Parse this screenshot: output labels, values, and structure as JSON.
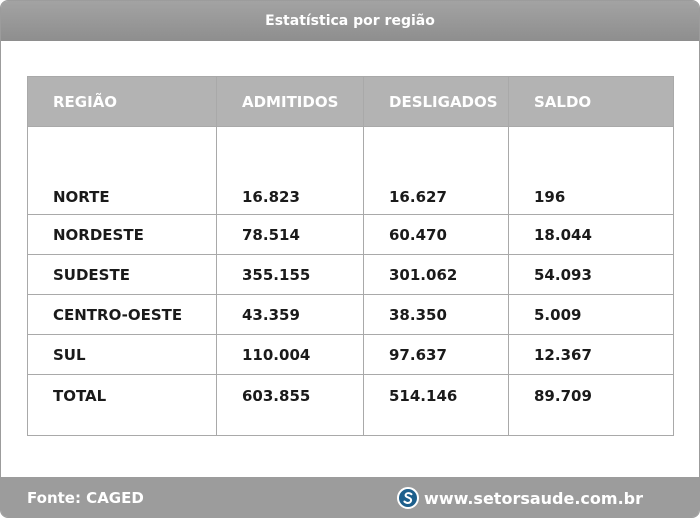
{
  "title": "Estatística por região",
  "table": {
    "headers": [
      "REGIÃO",
      "ADMITIDOS",
      "DESLIGADOS",
      "SALDO"
    ],
    "rows": [
      [
        "NORTE",
        "16.823",
        "16.627",
        "196"
      ],
      [
        "NORDESTE",
        "78.514",
        "60.470",
        "18.044"
      ],
      [
        "SUDESTE",
        "355.155",
        "301.062",
        "54.093"
      ],
      [
        "CENTRO-OESTE",
        "43.359",
        "38.350",
        "5.009"
      ],
      [
        "SUL",
        "110.004",
        "97.637",
        "12.367"
      ],
      [
        "TOTAL",
        "603.855",
        "514.146",
        "89.709"
      ]
    ]
  },
  "footer": {
    "source": "Fonte: CAGED",
    "site": "www.setorsaude.com.br",
    "logo_icon": "setorsaude-logo-icon"
  },
  "colors": {
    "header_bg": "#b3b3b3",
    "frame_bg": "#9c9c9c",
    "logo_blue": "#1d5f8c"
  }
}
